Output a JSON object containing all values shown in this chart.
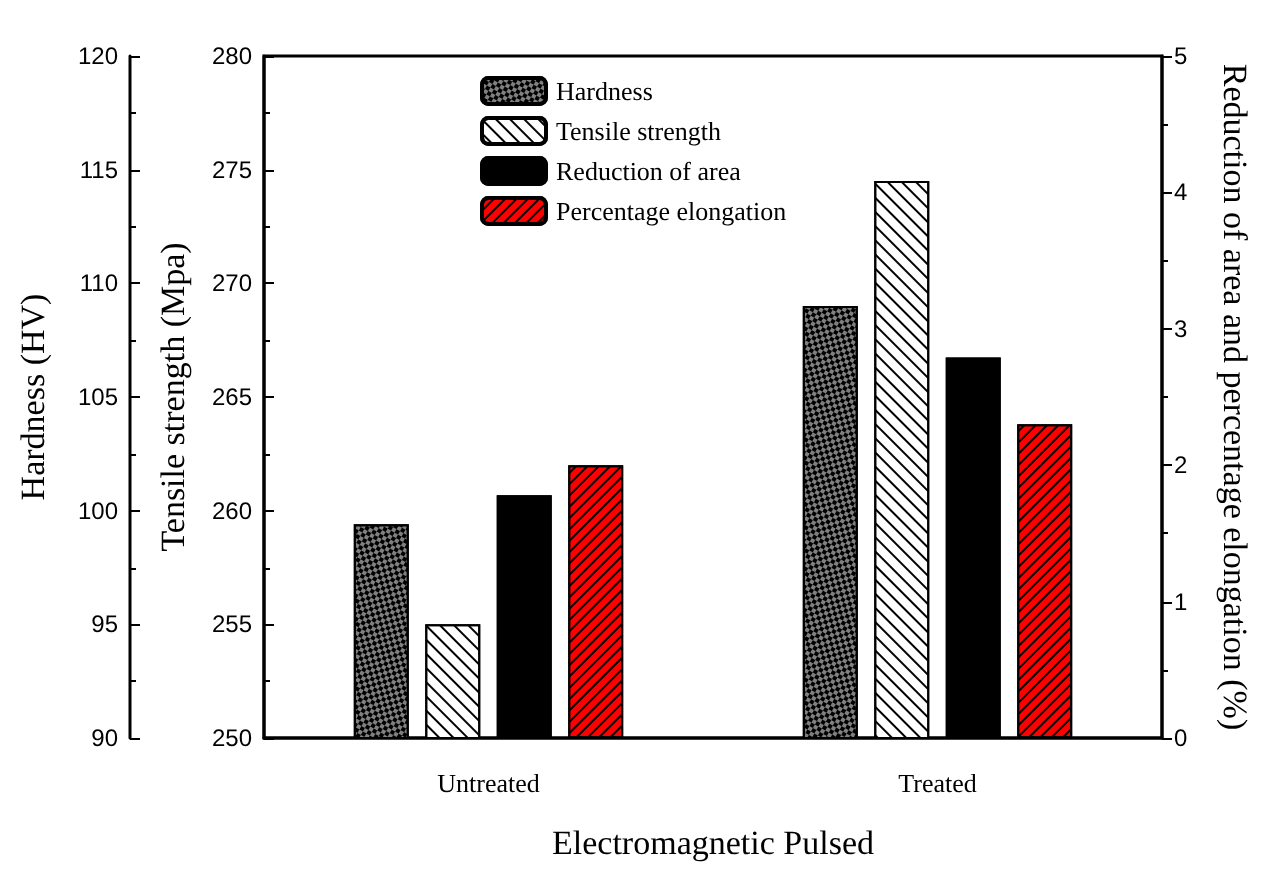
{
  "chart_data": {
    "type": "bar",
    "xlabel": "Electromagnetic Pulsed",
    "ylabel": "Hardness (HV)",
    "y2label": "Tensile strength (Mpa)",
    "y3label": "Reduction of area and percentage elongation (%)",
    "categories": [
      "Untreated",
      "Treated"
    ],
    "series": [
      {
        "name": "Hardness",
        "color": "#808080",
        "values": [
          99.4,
          109.0
        ]
      },
      {
        "name": "Tensile strength",
        "color": "#ffffff",
        "axis": "y2",
        "values": [
          255.0,
          274.5
        ]
      },
      {
        "name": "Reduction of area",
        "color": "#000000",
        "axis": "y3",
        "values": [
          1.78,
          2.79
        ]
      },
      {
        "name": "Percentage elongation",
        "color": "#ff0000",
        "axis": "y3",
        "values": [
          2.0,
          2.3
        ]
      }
    ],
    "ylim": [
      90,
      120
    ],
    "yticks": [
      90,
      95,
      100,
      105,
      110,
      115,
      120
    ],
    "y2lim": [
      250,
      280
    ],
    "y2ticks": [
      250,
      255,
      260,
      265,
      270,
      275,
      280
    ],
    "y3lim": [
      0,
      5
    ],
    "y3ticks": [
      0,
      1,
      2,
      3,
      4,
      5
    ],
    "grid": false,
    "legend": "top"
  }
}
